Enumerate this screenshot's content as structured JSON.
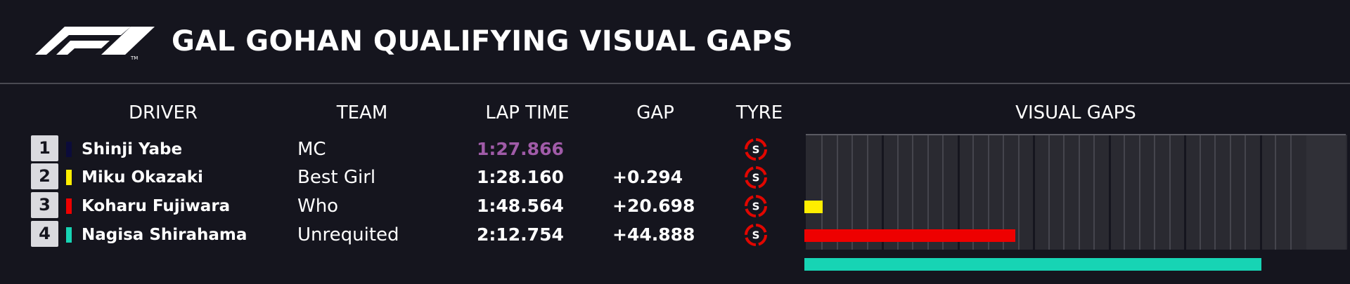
{
  "title": "GAL GOHAN QUALIFYING VISUAL GAPS",
  "logo_mark": "TM",
  "columns": {
    "driver": "DRIVER",
    "team": "TEAM",
    "lap_time": "LAP TIME",
    "gap": "GAP",
    "tyre": "TYRE",
    "visual_gaps": "VISUAL GAPS"
  },
  "rows": [
    {
      "position": "1",
      "driver": "Shinji Yabe",
      "team": "MC",
      "lap_time": "1:27.866",
      "gap": "",
      "tyre": "S",
      "color": "#0b0b3a",
      "gap_seconds": 0,
      "lap_color": "#a05ba8"
    },
    {
      "position": "2",
      "driver": "Miku Okazaki",
      "team": "Best Girl",
      "lap_time": "1:28.160",
      "gap": "+0.294",
      "tyre": "S",
      "color": "#ffee00",
      "gap_seconds": 0.294,
      "lap_color": "#ffffff"
    },
    {
      "position": "3",
      "driver": "Koharu Fujiwara",
      "team": "Who",
      "lap_time": "1:48.564",
      "gap": "+20.698",
      "tyre": "S",
      "color": "#ee0000",
      "gap_seconds": 20.698,
      "lap_color": "#ffffff"
    },
    {
      "position": "4",
      "driver": "Nagisa Shirahama",
      "team": "Unrequited",
      "lap_time": "2:12.754",
      "gap": "+44.888",
      "tyre": "S",
      "color": "#17d4b4",
      "gap_seconds": 44.888,
      "lap_color": "#ffffff"
    }
  ],
  "colors": {
    "background": "#15151e",
    "tyre_soft": "#e10600",
    "fastest_lap": "#a05ba8"
  },
  "icons": {
    "logo": "f1-logo-icon",
    "tyre": "soft-tyre-icon"
  }
}
